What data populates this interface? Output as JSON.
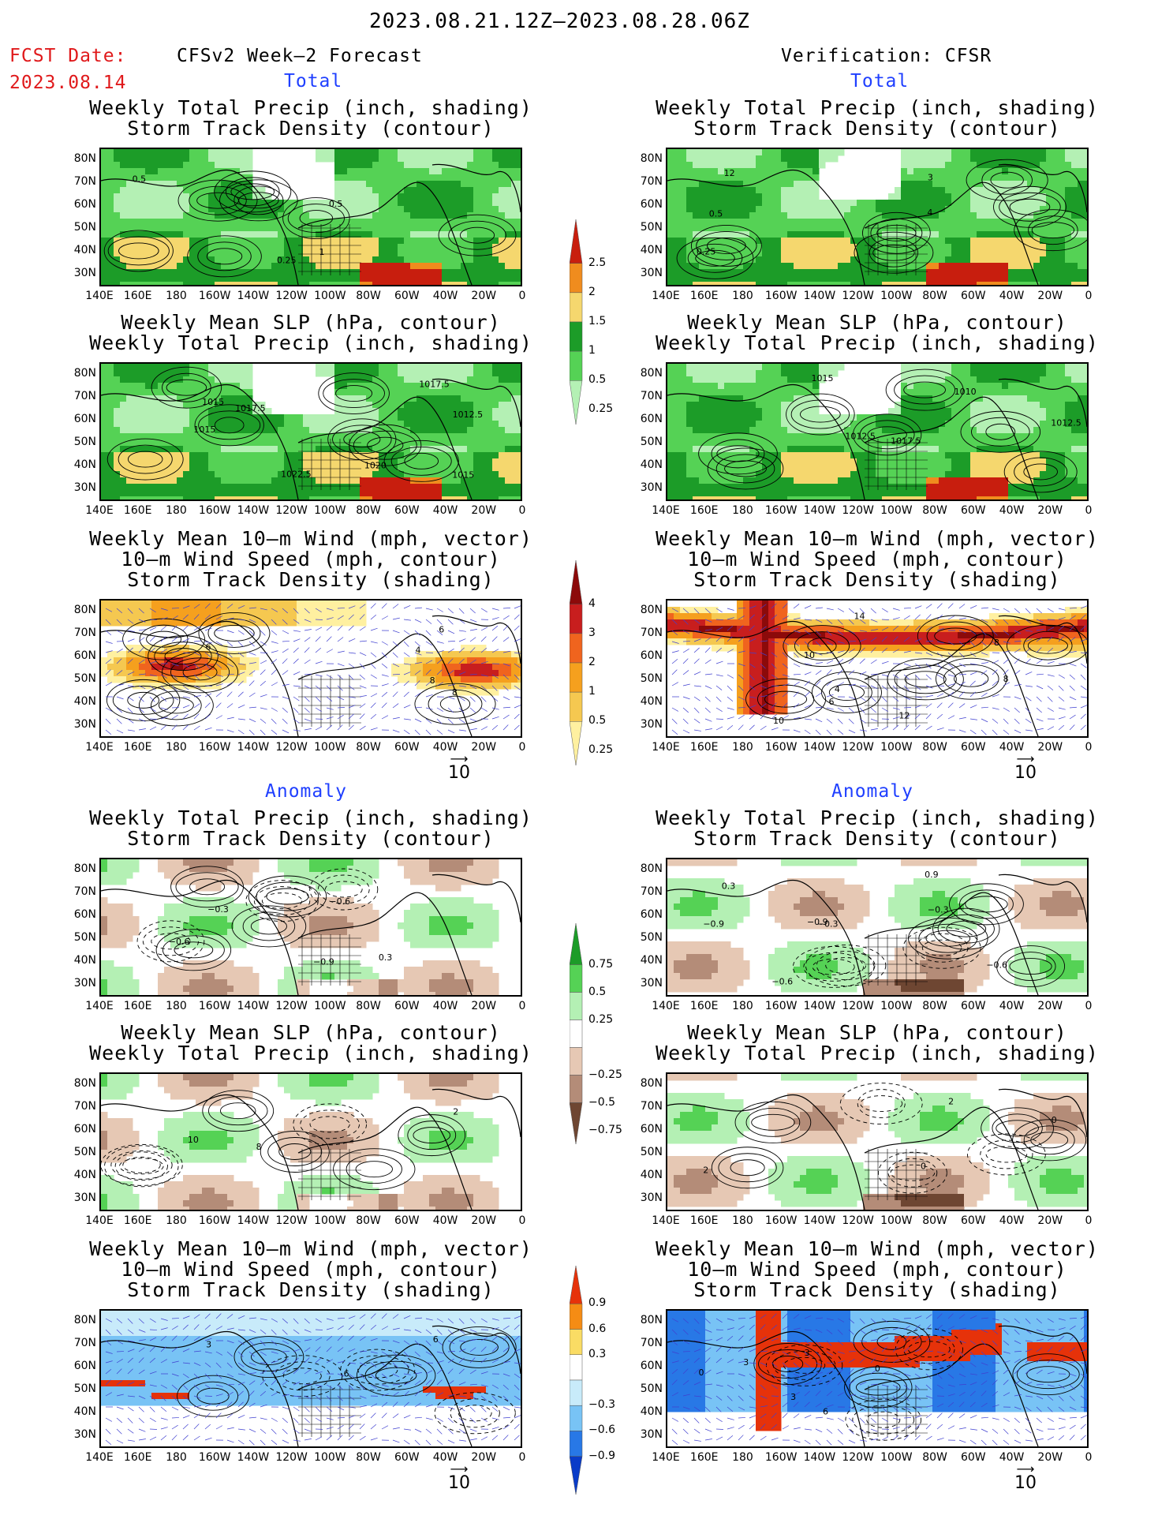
{
  "header": {
    "period": "2023.08.21.12Z–2023.08.28.06Z",
    "fcst_label": "FCST Date:",
    "fcst_date": "2023.08.14",
    "left_title": "CFSv2 Week–2 Forecast",
    "right_title": "Verification: CFSR"
  },
  "sections": {
    "total": "Total",
    "anomaly": "Anomaly"
  },
  "panel_titles": {
    "precip_storm": [
      "Weekly Total Precip (inch, shading)",
      "Storm Track Density (contour)"
    ],
    "slp_precip": [
      "Weekly Mean SLP (hPa, contour)",
      "Weekly Total Precip (inch, shading)"
    ],
    "wind_storm": [
      "Weekly Mean 10–m Wind (mph, vector)",
      "10–m Wind Speed (mph, contour)",
      "Storm Track Density (shading)"
    ]
  },
  "axes": {
    "lat_labels": [
      "80N",
      "70N",
      "60N",
      "50N",
      "40N",
      "30N"
    ],
    "lon_labels": [
      "140E",
      "160E",
      "180",
      "160W",
      "140W",
      "120W",
      "100W",
      "80W",
      "60W",
      "40W",
      "20W",
      "0"
    ]
  },
  "vector_ref": "10",
  "colorbars": {
    "precip_total": {
      "labels": [
        "2.5",
        "2",
        "1.5",
        "1",
        "0.5",
        "0.25"
      ],
      "colors": [
        "#c81e0e",
        "#f08c1e",
        "#f5d76e",
        "#1c9c28",
        "#55d255",
        "#b4f0b4"
      ]
    },
    "storm_total": {
      "labels": [
        "4",
        "3",
        "2",
        "1",
        "0.5",
        "0.25"
      ],
      "colors": [
        "#8c0a0a",
        "#c81e1e",
        "#f0641e",
        "#f5a01e",
        "#f5c850",
        "#fff0a0"
      ]
    },
    "precip_anom": {
      "labels": [
        "0.75",
        "0.5",
        "0.25",
        "−0.25",
        "−0.5",
        "−0.75"
      ],
      "colors": [
        "#1c9c28",
        "#55d255",
        "#b4f0b4",
        "#ffffff",
        "#e6c8b4",
        "#b48c78",
        "#6e4632"
      ]
    },
    "storm_anom": {
      "labels": [
        "0.9",
        "0.6",
        "0.3",
        "−0.3",
        "−0.6",
        "−0.9"
      ],
      "colors": [
        "#e6320a",
        "#f58c14",
        "#fadc64",
        "#ffffff",
        "#c8ebfa",
        "#78c3f5",
        "#2878e6",
        "#0a3cc8"
      ]
    }
  },
  "contour_labels": {
    "p1_left": [
      "0.25",
      "1",
      "0.5",
      "0.5"
    ],
    "p1_right": [
      "12",
      "0.5",
      "4",
      "0.25",
      "3"
    ],
    "p2_left": [
      "1020",
      "1015",
      "1012.5",
      "1022.5",
      "1015",
      "1015",
      "1017.5",
      "1017.5"
    ],
    "p2_right": [
      "1015",
      "1010",
      "1012.5",
      "1012.5",
      "1017.5"
    ],
    "p3_left": [
      "8",
      "6",
      "6",
      "8",
      "4"
    ],
    "p3_right": [
      "12",
      "6",
      "10",
      "8",
      "14",
      "10",
      "8",
      "4"
    ],
    "p4_left": [
      "−0.6",
      "−0.9",
      "−0.6",
      "−0.3",
      "0.3"
    ],
    "p4_right": [
      "−0.6",
      "−0.9",
      "−0.3",
      "−0.6",
      "−0.3",
      "−0.9",
      "0.9",
      "0.3"
    ],
    "p5_left": [
      "8",
      "10",
      "2"
    ],
    "p5_right": [
      "2",
      "2",
      "0",
      "0"
    ],
    "p6_left": [
      "6",
      "6",
      "3"
    ],
    "p6_right": [
      "3",
      "6",
      "3",
      "0",
      "3",
      "0"
    ]
  }
}
